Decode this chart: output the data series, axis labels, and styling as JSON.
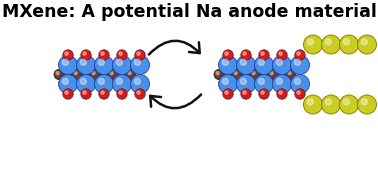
{
  "title": "MXene: A potential Na anode material",
  "title_fontsize": 12.5,
  "title_fontweight": "bold",
  "bg_color": "#ffffff",
  "blue_color": "#4a90e8",
  "red_color": "#cc2020",
  "brown_color": "#6b3a2a",
  "yellow_color": "#cccc22",
  "yellow_edge": "#888800",
  "arrow_color": "#111111",
  "bond_color_blue": "#6ab0f0",
  "bond_color_red": "#cc3030",
  "bond_color_brown": "#7a4a30"
}
